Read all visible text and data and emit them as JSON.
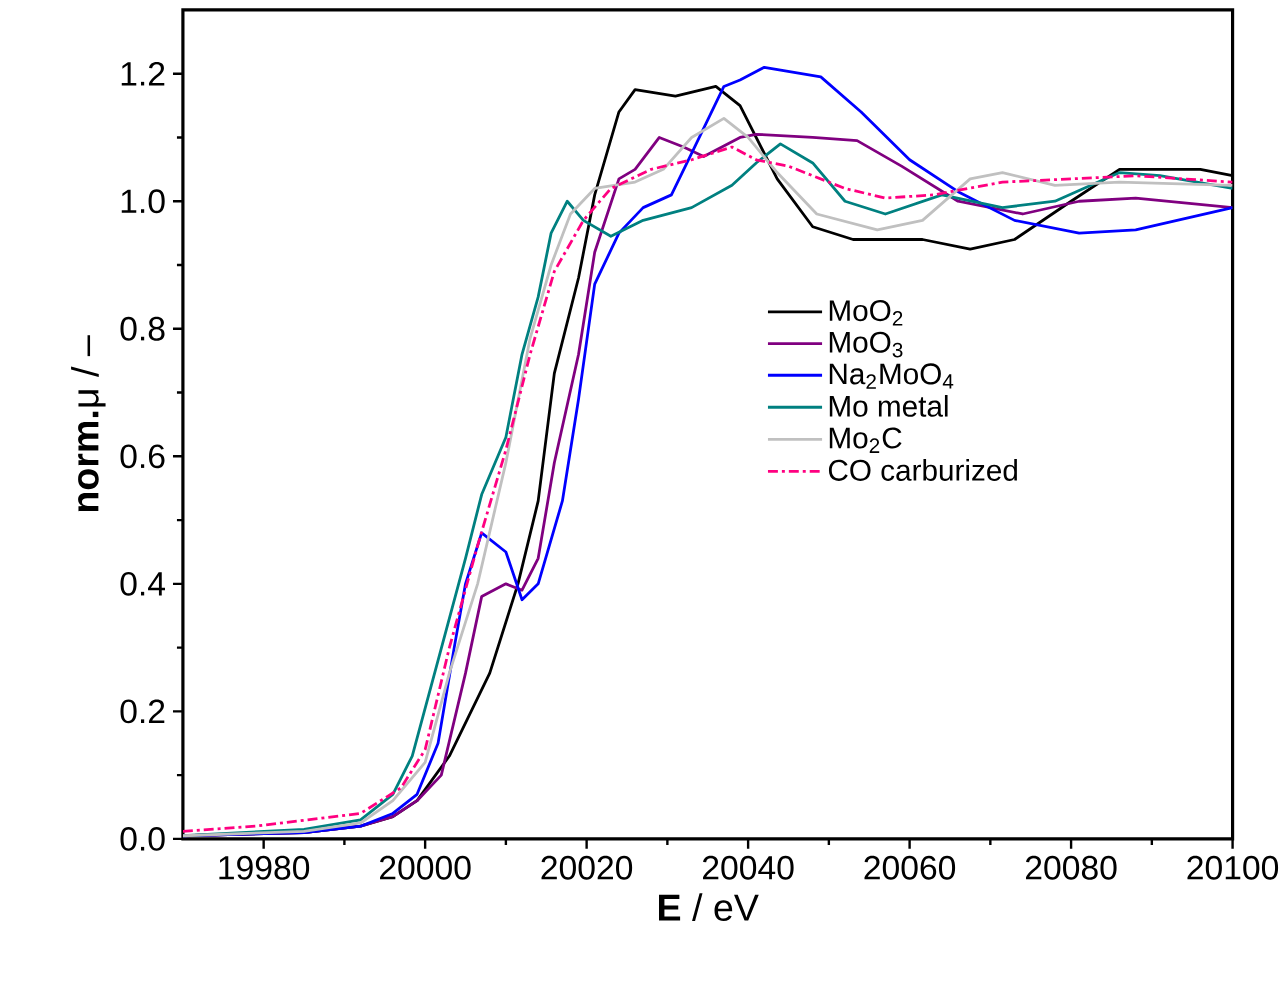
{
  "chart_data": {
    "type": "line",
    "xlabel": "**E** / eV",
    "ylabel": "**norm.**μ / –",
    "xlim": [
      19970,
      20100
    ],
    "ylim": [
      0,
      1.3
    ],
    "xticks": [
      19980,
      20000,
      20020,
      20040,
      20060,
      20080,
      20100
    ],
    "yticks": [
      {
        "value": 0,
        "label": "0.0"
      },
      {
        "value": 0.2,
        "label": "0.2"
      },
      {
        "value": 0.4,
        "label": "0.4"
      },
      {
        "value": 0.6,
        "label": "0.6"
      },
      {
        "value": 0.8,
        "label": "0.8"
      },
      {
        "value": 1.0,
        "label": "1.0"
      },
      {
        "value": 1.2,
        "label": "1.2"
      }
    ],
    "grid": false,
    "legend": "right",
    "marker": "none",
    "series": [
      {
        "name": "MoO$_{2}$",
        "color": "#000000",
        "line_style": "solid",
        "x": [
          19970,
          19985,
          19992,
          19996,
          19999,
          20003,
          20008,
          20011.5,
          20014,
          20016,
          20019,
          20021,
          20024,
          20026,
          20031,
          20036,
          20039,
          20043.6,
          20048,
          20053,
          20061.6,
          20067.5,
          20073,
          20080,
          20086,
          20096,
          20100
        ],
        "values": [
          0.005,
          0.01,
          0.02,
          0.035,
          0.06,
          0.13,
          0.26,
          0.4,
          0.53,
          0.73,
          0.88,
          1.01,
          1.14,
          1.175,
          1.165,
          1.18,
          1.15,
          1.035,
          0.96,
          0.94,
          0.94,
          0.925,
          0.94,
          1.0,
          1.05,
          1.05,
          1.04
        ]
      },
      {
        "name": "MoO$_{3}$",
        "color": "#800080",
        "line_style": "solid",
        "x": [
          19970,
          19985,
          19992,
          19996,
          19999,
          20002,
          20005,
          20007,
          20010,
          20012,
          20014,
          20016,
          20019,
          20021,
          20024,
          20026,
          20029,
          20032,
          20034.5,
          20039,
          20041,
          20048,
          20053.5,
          20059,
          20066,
          20074,
          20081,
          20088,
          20100
        ],
        "values": [
          0.005,
          0.01,
          0.02,
          0.035,
          0.06,
          0.1,
          0.26,
          0.38,
          0.4,
          0.39,
          0.44,
          0.59,
          0.76,
          0.92,
          1.035,
          1.05,
          1.1,
          1.085,
          1.07,
          1.1,
          1.105,
          1.1,
          1.095,
          1.055,
          1.0,
          0.98,
          1.0,
          1.005,
          0.99
        ]
      },
      {
        "name": "Na$_{2}$MoO$_{4}$",
        "color": "#0000ff",
        "line_style": "solid",
        "x": [
          19970,
          19985,
          19992,
          19996,
          19999,
          20001.6,
          20003.6,
          20005,
          20007,
          20010,
          20012,
          20014,
          20017,
          20019,
          20021,
          20024,
          20027,
          20030.5,
          20033,
          20037,
          20039,
          20042,
          20049,
          20054,
          20060,
          20066,
          20073,
          20081,
          20088,
          20100
        ],
        "values": [
          0.005,
          0.01,
          0.02,
          0.04,
          0.07,
          0.15,
          0.3,
          0.4,
          0.48,
          0.45,
          0.375,
          0.4,
          0.53,
          0.69,
          0.87,
          0.95,
          0.99,
          1.01,
          1.075,
          1.18,
          1.19,
          1.21,
          1.195,
          1.14,
          1.065,
          1.015,
          0.97,
          0.95,
          0.955,
          0.99
        ]
      },
      {
        "name": "Mo metal",
        "color": "#008080",
        "line_style": "solid",
        "x": [
          19970,
          19985,
          19992,
          19996,
          19998.4,
          20001.6,
          20005,
          20007,
          20010,
          20012,
          20014,
          20015.6,
          20017.6,
          20019.6,
          20023,
          20027,
          20033,
          20038,
          20041,
          20044,
          20048,
          20052,
          20057,
          20064,
          20071.5,
          20078,
          20086,
          20091,
          20100
        ],
        "values": [
          0.005,
          0.015,
          0.03,
          0.07,
          0.13,
          0.28,
          0.44,
          0.54,
          0.63,
          0.76,
          0.85,
          0.95,
          1.0,
          0.97,
          0.945,
          0.97,
          0.99,
          1.025,
          1.06,
          1.09,
          1.06,
          1.0,
          0.98,
          1.01,
          0.99,
          1.0,
          1.045,
          1.04,
          1.02
        ]
      },
      {
        "name": "Mo$_{2}$C",
        "color": "#c0c0c0",
        "line_style": "solid",
        "x": [
          19970,
          19985,
          19992,
          19996,
          20000,
          20003,
          20006.5,
          20010,
          20013,
          20015.6,
          20018,
          20021,
          20026,
          20029.5,
          20033,
          20037,
          20040,
          20043.6,
          20048.5,
          20056,
          20061.6,
          20067.5,
          20071.5,
          20078,
          20086,
          20100
        ],
        "values": [
          0.005,
          0.012,
          0.025,
          0.06,
          0.12,
          0.26,
          0.4,
          0.59,
          0.785,
          0.9,
          0.98,
          1.02,
          1.03,
          1.05,
          1.1,
          1.13,
          1.1,
          1.045,
          0.98,
          0.955,
          0.97,
          1.035,
          1.045,
          1.025,
          1.03,
          1.025
        ]
      },
      {
        "name": "CO carburized",
        "color": "#ff0080",
        "line_style": "dashdot",
        "x": [
          19970,
          19979,
          19992,
          19997,
          20000,
          20003,
          20006.5,
          20010,
          20013,
          20016,
          20019.6,
          20023,
          20028,
          20033,
          20038,
          20041,
          20045,
          20052,
          20057,
          20063,
          20071.5,
          20080,
          20088,
          20100
        ],
        "values": [
          0.012,
          0.02,
          0.04,
          0.08,
          0.14,
          0.3,
          0.46,
          0.61,
          0.76,
          0.89,
          0.97,
          1.02,
          1.05,
          1.065,
          1.085,
          1.065,
          1.055,
          1.02,
          1.005,
          1.01,
          1.03,
          1.035,
          1.04,
          1.03
        ]
      }
    ]
  }
}
